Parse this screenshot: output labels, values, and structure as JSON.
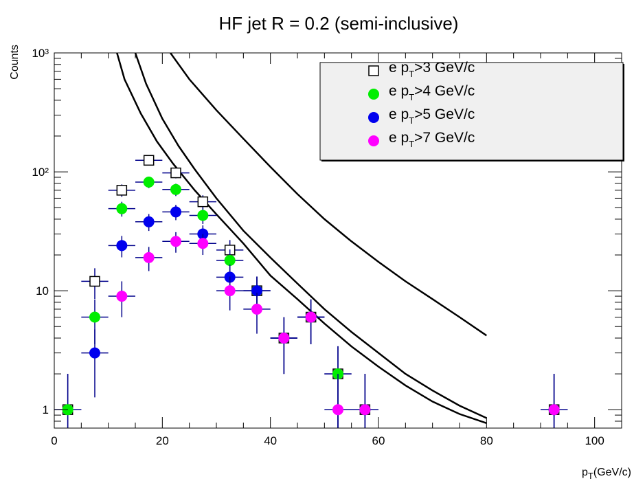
{
  "chart_data": {
    "type": "scatter",
    "title": "HF jet R = 0.2 (semi-inclusive)",
    "xlabel": "p_T(GeV/c)",
    "ylabel": "Counts",
    "xlim": [
      0,
      105
    ],
    "ylim": [
      0.7,
      1000
    ],
    "y_scale": "log",
    "x_ticks": [
      0,
      20,
      40,
      60,
      80,
      100
    ],
    "x_tick_labels": [
      "0",
      "20",
      "40",
      "60",
      "80",
      "100"
    ],
    "y_ticks": [
      1,
      10,
      100,
      1000
    ],
    "y_tick_labels": [
      "1",
      "10",
      "10²",
      "10³"
    ],
    "grid": false,
    "legend_position": "top-right",
    "legend": [
      {
        "pre": "e p",
        "sub": "T",
        "post": ">3 GeV/c"
      },
      {
        "pre": "e p",
        "sub": "T",
        "post": ">4 GeV/c"
      },
      {
        "pre": "e p",
        "sub": "T",
        "post": ">5 GeV/c"
      },
      {
        "pre": "e p",
        "sub": "T",
        "post": ">7 GeV/c"
      }
    ],
    "series": [
      {
        "name": "e pT>3 GeV/c",
        "marker": "open-square",
        "color": "#000000",
        "x": [
          2.5,
          7.5,
          12.5,
          17.5,
          22.5,
          27.5,
          32.5,
          37.5,
          42.5,
          47.5,
          52.5,
          57.5,
          92.5
        ],
        "y": [
          1,
          12,
          70,
          125,
          98,
          56,
          22,
          10,
          4,
          6,
          2,
          1,
          1
        ]
      },
      {
        "name": "e pT>4 GeV/c",
        "marker": "filled-circle",
        "color": "#00ee00",
        "x": [
          2.5,
          7.5,
          12.5,
          17.5,
          22.5,
          27.5,
          32.5,
          37.5,
          42.5,
          47.5,
          52.5,
          57.5,
          92.5
        ],
        "y": [
          1,
          6,
          49,
          82,
          71,
          43,
          18,
          10,
          4,
          6,
          2,
          1,
          1
        ]
      },
      {
        "name": "e pT>5 GeV/c",
        "marker": "filled-circle",
        "color": "#0000ee",
        "x": [
          7.5,
          12.5,
          17.5,
          22.5,
          27.5,
          32.5,
          37.5,
          42.5,
          47.5,
          57.5,
          92.5
        ],
        "y": [
          3,
          24,
          38,
          46,
          30,
          13,
          10,
          4,
          6,
          1,
          1
        ]
      },
      {
        "name": "e pT>7 GeV/c",
        "marker": "filled-circle",
        "color": "#ff00ff",
        "x": [
          12.5,
          17.5,
          22.5,
          27.5,
          32.5,
          37.5,
          42.5,
          47.5,
          52.5,
          57.5,
          92.5
        ],
        "y": [
          9,
          19,
          26,
          25,
          10,
          7,
          4,
          6,
          1,
          1,
          1
        ]
      }
    ],
    "curves": [
      {
        "color": "#000000",
        "x": [
          11.6,
          13,
          16,
          19,
          22,
          26,
          30,
          35,
          40,
          45,
          50,
          55,
          60,
          65,
          70,
          75,
          80
        ],
        "y": [
          1000,
          600,
          310,
          180,
          117,
          70,
          44,
          25,
          13.4,
          8.5,
          5.3,
          3.4,
          2.3,
          1.6,
          1.17,
          0.92,
          0.77
        ]
      },
      {
        "color": "#000000",
        "x": [
          15,
          17,
          20,
          23,
          26,
          30,
          35,
          40,
          45,
          50,
          55,
          60,
          65,
          70,
          75,
          80
        ],
        "y": [
          1000,
          550,
          280,
          165,
          105,
          60,
          32,
          19,
          11.5,
          7,
          4.5,
          3.0,
          2.0,
          1.45,
          1.08,
          0.85
        ]
      },
      {
        "color": "#000000",
        "x": [
          21.5,
          25,
          30,
          35,
          40,
          45,
          50,
          55,
          60,
          65,
          70,
          75,
          80
        ],
        "y": [
          1000,
          600,
          330,
          190,
          110,
          65,
          40,
          26,
          17.5,
          12,
          8.5,
          6,
          4.2
        ]
      }
    ]
  }
}
